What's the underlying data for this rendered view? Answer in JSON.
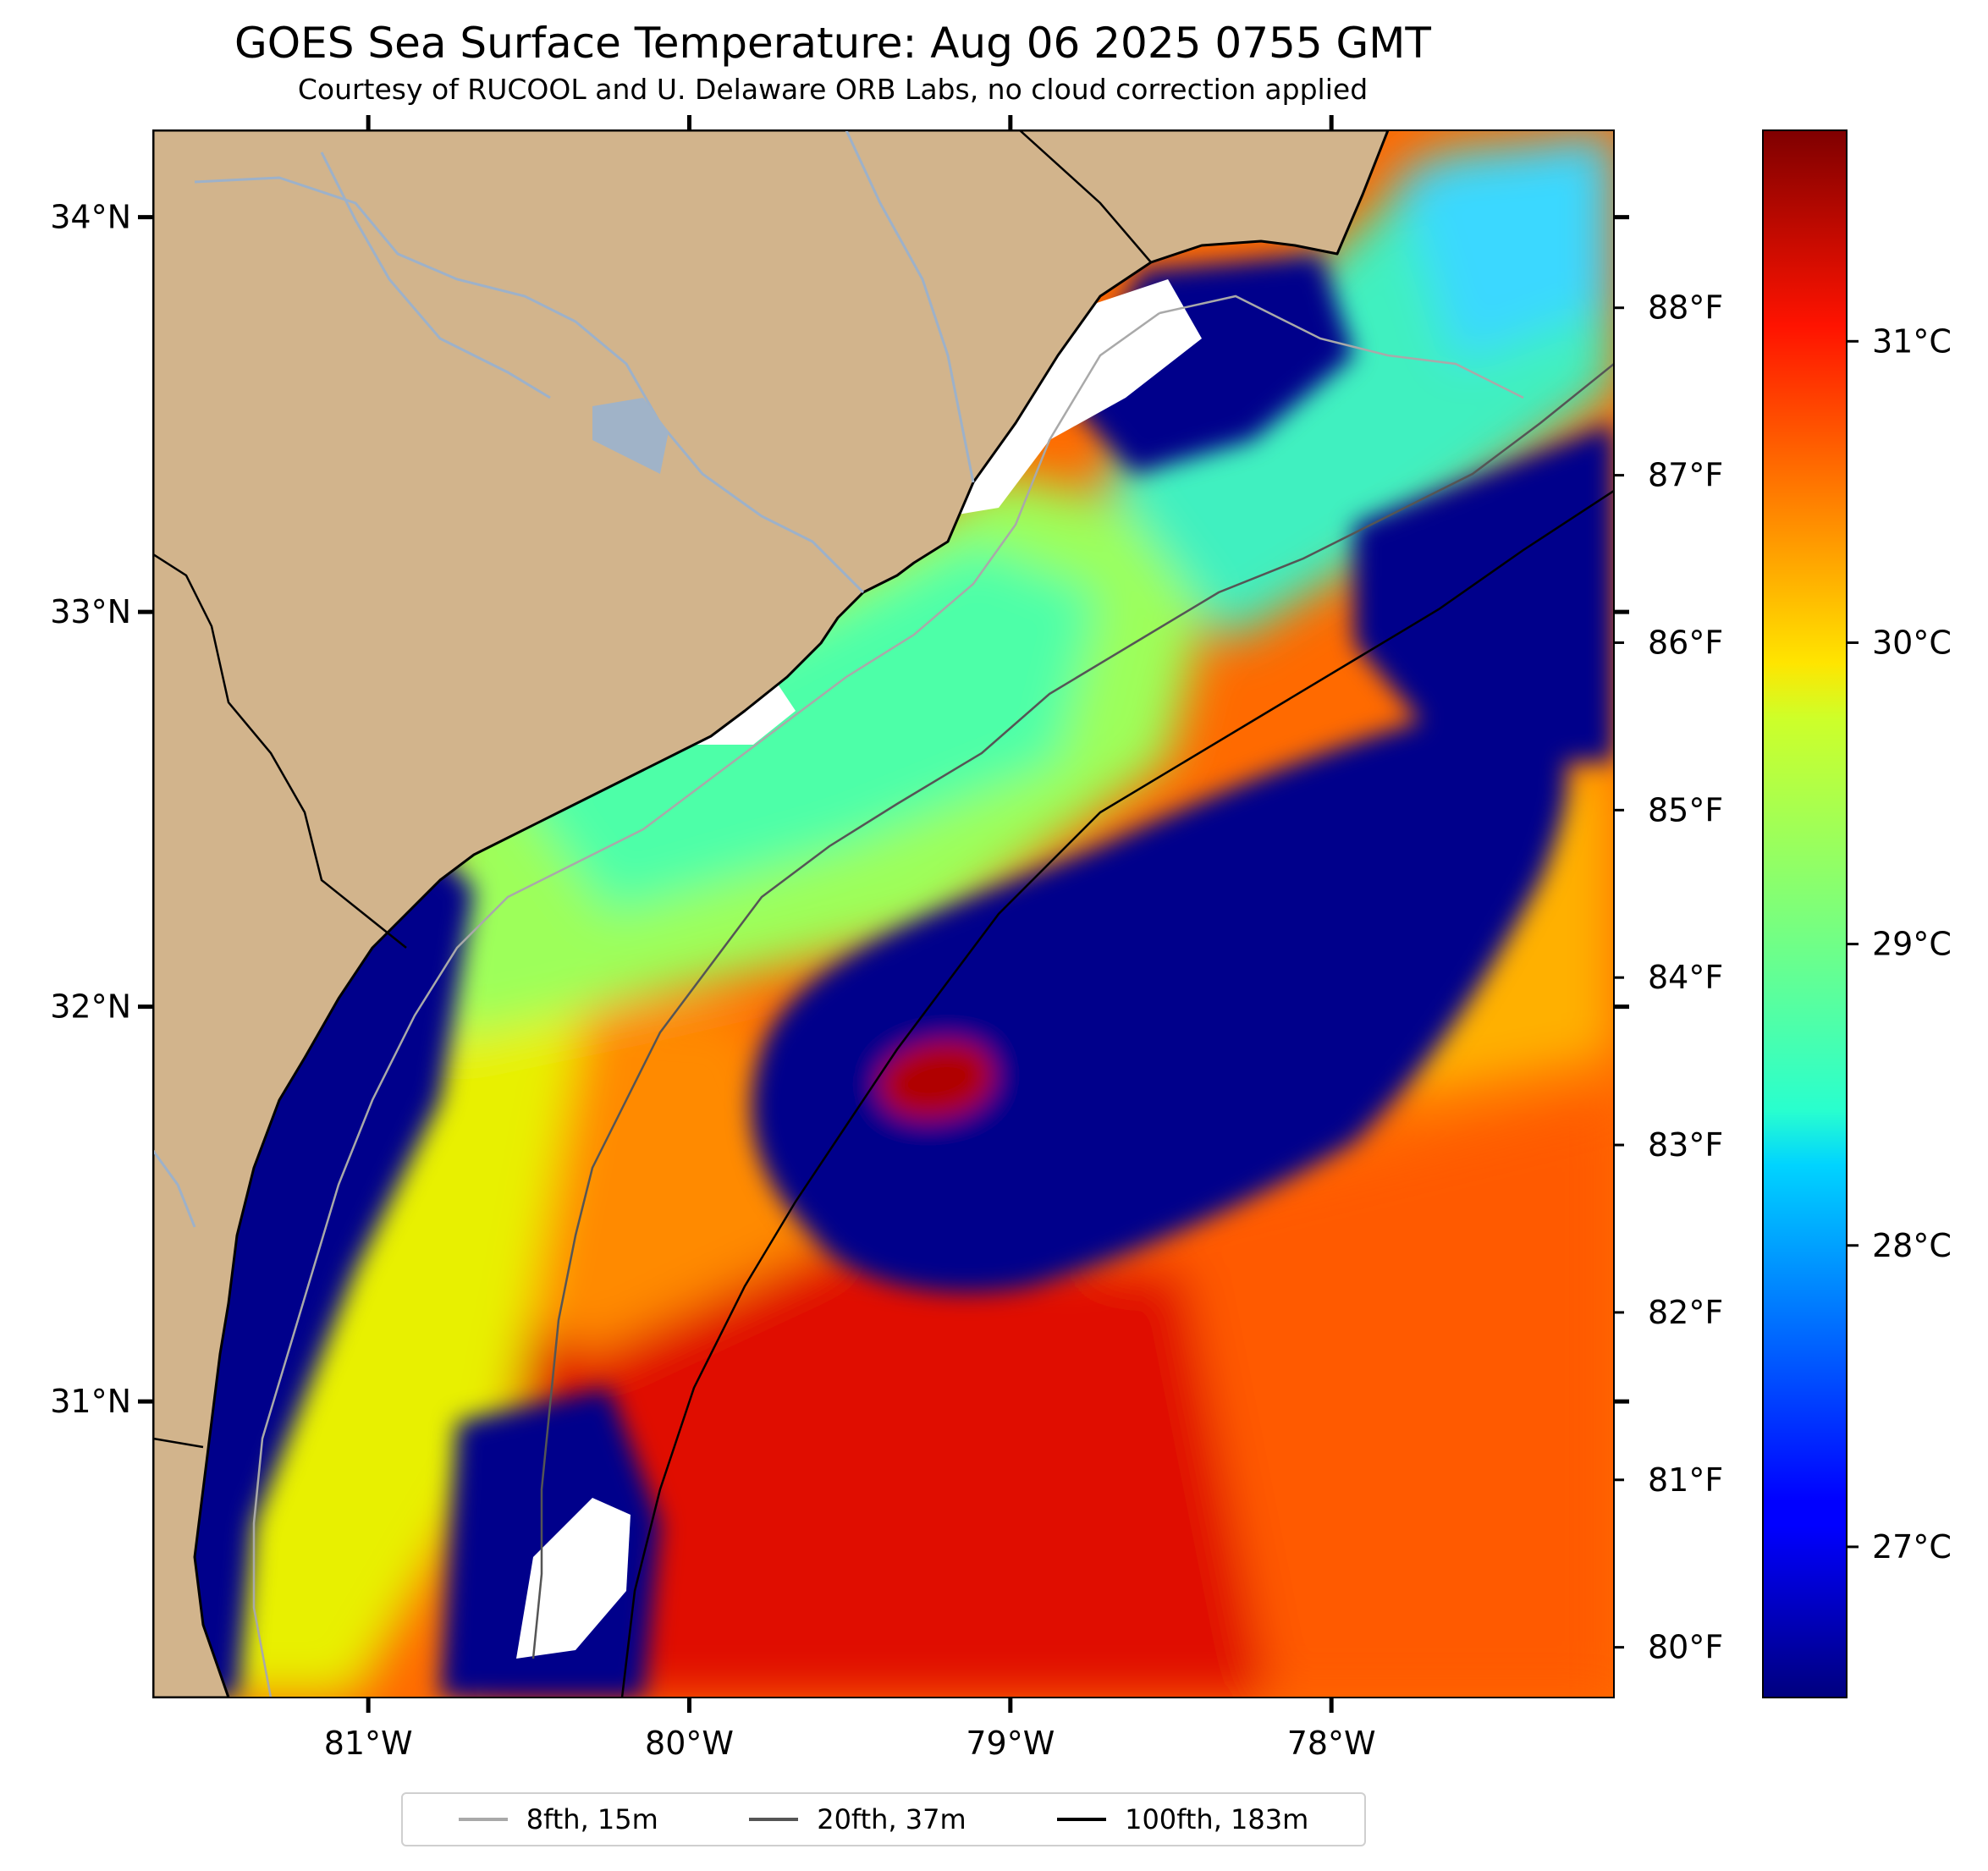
{
  "title": "GOES Sea Surface Temperature: Aug 06 2025 0755 GMT",
  "subtitle": "Courtesy of RUCOOL and U. Delaware ORB Labs, no cloud correction applied",
  "map": {
    "lon_range": [
      -81.67,
      -77.12
    ],
    "lat_range": [
      30.25,
      34.22
    ],
    "colors": {
      "land": "#d2b48c",
      "no_data": "#ffffff",
      "coast": "#000000",
      "rivers": "#9db1c9",
      "cold_pool": "#00008b"
    },
    "lat_ticks": [
      {
        "value": 34,
        "label": "34°N"
      },
      {
        "value": 33,
        "label": "33°N"
      },
      {
        "value": 32,
        "label": "32°N"
      },
      {
        "value": 31,
        "label": "31°N"
      }
    ],
    "lon_ticks": [
      {
        "value": -81,
        "label": "81°W"
      },
      {
        "value": -80,
        "label": "80°W"
      },
      {
        "value": -79,
        "label": "79°W"
      },
      {
        "value": -78,
        "label": "78°W"
      }
    ],
    "fahrenheit_ticks": [
      {
        "value": 88,
        "label": "88°F"
      },
      {
        "value": 87,
        "label": "87°F"
      },
      {
        "value": 86,
        "label": "86°F"
      },
      {
        "value": 85,
        "label": "85°F"
      },
      {
        "value": 84,
        "label": "84°F"
      },
      {
        "value": 83,
        "label": "83°F"
      },
      {
        "value": 82,
        "label": "82°F"
      },
      {
        "value": 81,
        "label": "81°F"
      },
      {
        "value": 80,
        "label": "80°F"
      }
    ]
  },
  "colorbar": {
    "colormap": "jet",
    "range_c": [
      26.5,
      31.7
    ],
    "ticks": [
      {
        "value": 31,
        "label": "31°C"
      },
      {
        "value": 30,
        "label": "30°C"
      },
      {
        "value": 29,
        "label": "29°C"
      },
      {
        "value": 28,
        "label": "28°C"
      },
      {
        "value": 27,
        "label": "27°C"
      }
    ]
  },
  "legend": {
    "items": [
      {
        "label": "8fth, 15m",
        "color": "#a9a9a9"
      },
      {
        "label": "20fth, 37m",
        "color": "#555555"
      },
      {
        "label": "100fth, 183m",
        "color": "#000000"
      }
    ]
  }
}
